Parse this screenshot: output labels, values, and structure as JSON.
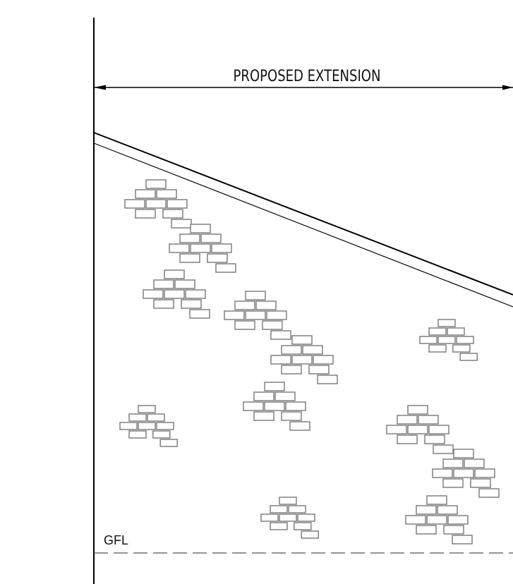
{
  "dimension": {
    "label": "PROPOSED EXTENSION"
  },
  "level": {
    "label": "GFL"
  }
}
